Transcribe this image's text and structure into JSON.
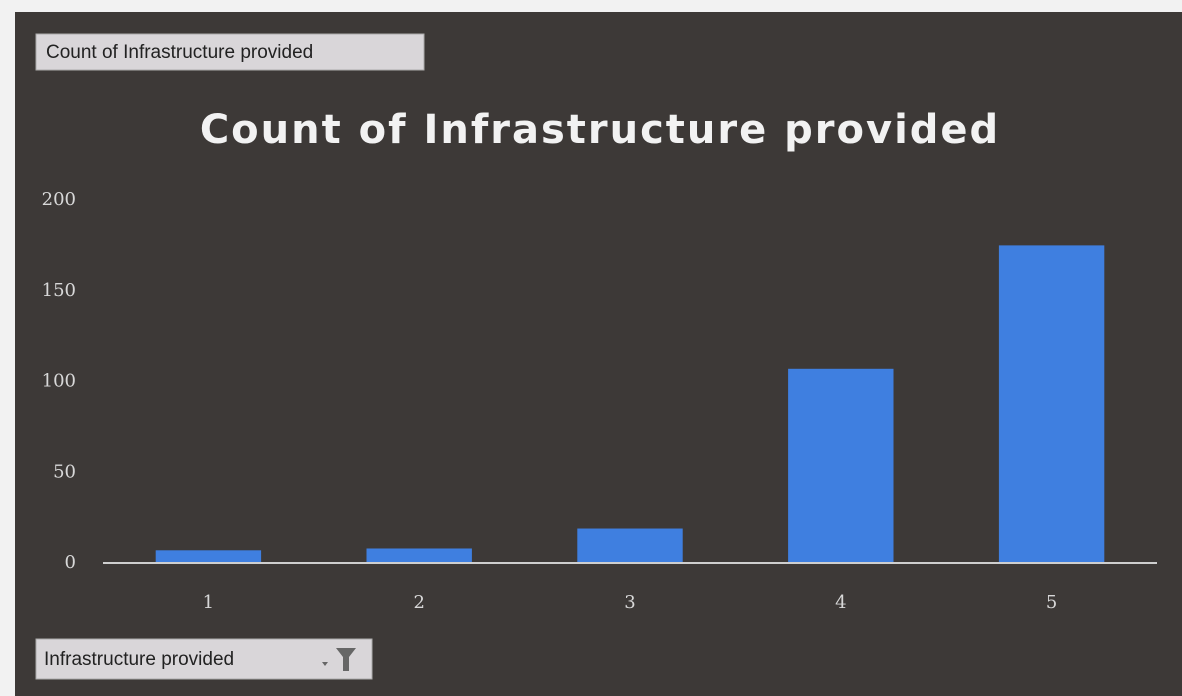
{
  "chart_data": {
    "type": "bar",
    "title": "Count of  Infrastructure provided",
    "value_field_button": "Count of Infrastructure  provided",
    "axis_field_button": "Infrastructure  provided",
    "categories": [
      "1",
      "2",
      "3",
      "4",
      "5"
    ],
    "values": [
      7,
      8,
      19,
      107,
      175
    ],
    "color": "#3f7fe0",
    "ylim": [
      0,
      200
    ],
    "yticks": [
      0,
      50,
      100,
      150,
      200
    ],
    "grid": false
  }
}
